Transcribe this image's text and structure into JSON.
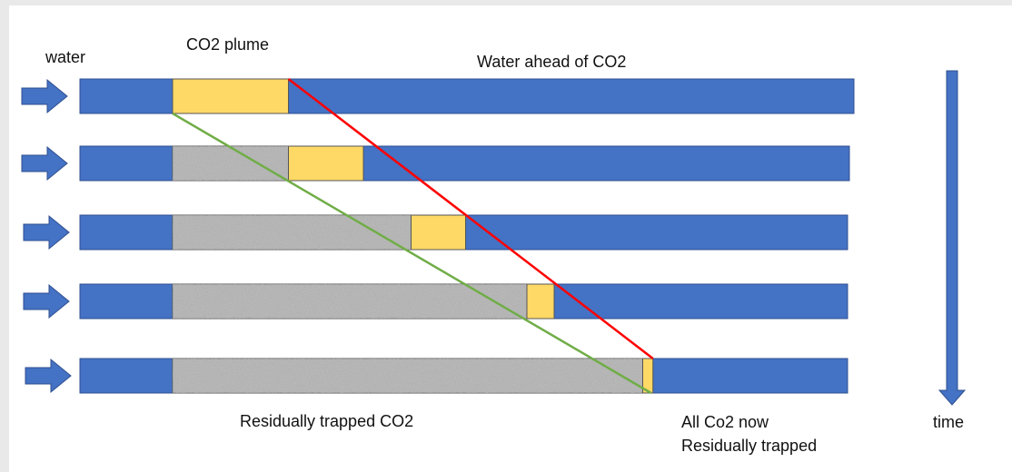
{
  "labels": {
    "water": "water",
    "co2_plume": "CO2 plume",
    "water_ahead": "Water ahead of CO2",
    "residually_trapped": "Residually trapped CO2",
    "all_trapped_line1": "All Co2 now",
    "all_trapped_line2": "Residually trapped",
    "time": "time"
  },
  "colors": {
    "water": "#4472c4",
    "co2": "#ffd966",
    "trapped": "#a6a6a6",
    "front_line": "#ff0000",
    "back_line": "#70ad47",
    "outline": "#2f4f8f"
  },
  "icons": {
    "inflow": "right-arrow-icon",
    "time": "down-arrow-icon"
  },
  "rows": [
    {
      "trapped_fraction": 0.0,
      "plume_fraction": 0.17
    },
    {
      "trapped_fraction": 0.17,
      "plume_fraction": 0.11
    },
    {
      "trapped_fraction": 0.35,
      "plume_fraction": 0.08
    },
    {
      "trapped_fraction": 0.52,
      "plume_fraction": 0.04
    },
    {
      "trapped_fraction": 0.69,
      "plume_fraction": 0.015
    }
  ]
}
